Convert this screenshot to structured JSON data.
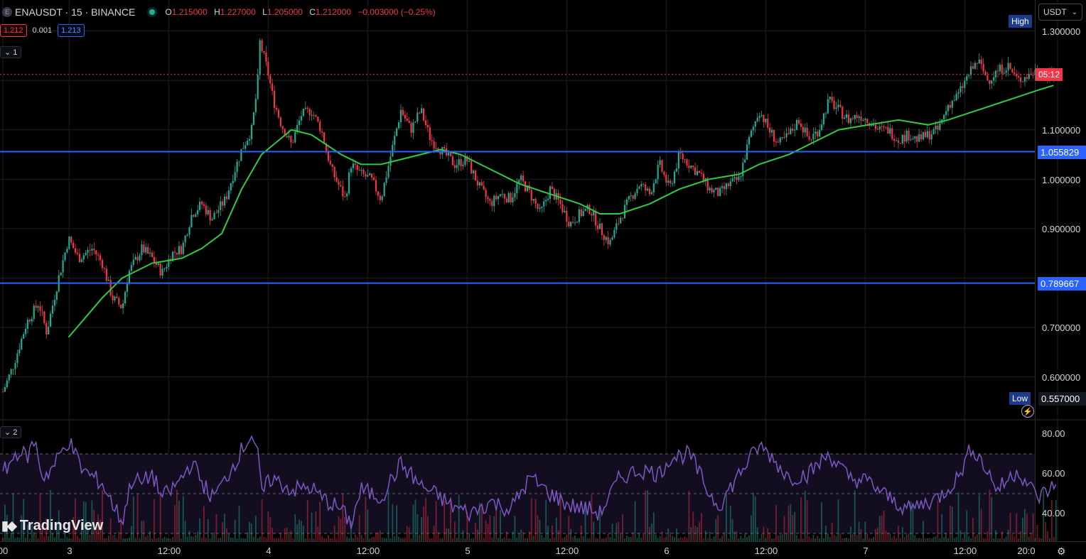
{
  "header": {
    "exchange_badge": "E",
    "symbol": "ENAUSDT · 15 · BINANCE",
    "ohlc": [
      {
        "k": "O",
        "v": "1.215000"
      },
      {
        "k": "H",
        "v": "1.227000"
      },
      {
        "k": "L",
        "v": "1.205000"
      },
      {
        "k": "C",
        "v": "1.212000"
      }
    ],
    "change": "−0.003000 (−0.25%)"
  },
  "trade": {
    "sell": "1.212",
    "spread": "0.001",
    "buy": "1.213"
  },
  "panes": {
    "main_tag": "1",
    "rsi_tag": "2"
  },
  "price_axis": {
    "currency": "USDT",
    "ticks": [
      {
        "label": "1.300000",
        "value": 1.3
      },
      {
        "label": "1.100000",
        "value": 1.1
      },
      {
        "label": "1.000000",
        "value": 1.0
      },
      {
        "label": "0.900000",
        "value": 0.9
      },
      {
        "label": "0.700000",
        "value": 0.7
      },
      {
        "label": "0.600000",
        "value": 0.6
      }
    ],
    "high_label": "High",
    "low_label": "Low",
    "low_value": "0.557000",
    "countdown": "05:12",
    "level_1": "1.055829",
    "level_2": "0.789667"
  },
  "rsi_axis": {
    "ticks": [
      {
        "label": "80.00",
        "value": 80
      },
      {
        "label": "60.00",
        "value": 60
      },
      {
        "label": "40.00",
        "value": 40
      }
    ]
  },
  "time_axis": [
    {
      "label": "00",
      "day": 0.0
    },
    {
      "label": "3",
      "day": 0.333
    },
    {
      "label": "12:00",
      "day": 0.833
    },
    {
      "label": "4",
      "day": 1.333
    },
    {
      "label": "12:00",
      "day": 1.833
    },
    {
      "label": "5",
      "day": 2.333
    },
    {
      "label": "12:00",
      "day": 2.833
    },
    {
      "label": "6",
      "day": 3.333
    },
    {
      "label": "12:00",
      "day": 3.833
    },
    {
      "label": "7",
      "day": 4.333
    },
    {
      "label": "12:00",
      "day": 4.833
    },
    {
      "label": "20:0",
      "day": 5.3
    }
  ],
  "branding": {
    "logo": "TradingView"
  },
  "colors": {
    "up": "#22ab94",
    "down": "#f23645",
    "ma": "#2ecc40",
    "level": "#2962ff",
    "rsi": "#7e57c2",
    "grid": "#1c1f26",
    "countdown_bg": "#f23645",
    "label_bg": "#1e3a8a"
  },
  "chart_data": {
    "type": "candlestick",
    "interval": "15m",
    "price_range": [
      0.56,
      1.33
    ],
    "current_price": 1.212,
    "horizontal_levels": [
      1.055829,
      0.789667
    ],
    "price_path": [
      [
        0.0,
        0.57
      ],
      [
        0.05,
        0.62
      ],
      [
        0.12,
        0.71
      ],
      [
        0.18,
        0.75
      ],
      [
        0.22,
        0.69
      ],
      [
        0.28,
        0.8
      ],
      [
        0.33,
        0.88
      ],
      [
        0.38,
        0.84
      ],
      [
        0.45,
        0.86
      ],
      [
        0.5,
        0.83
      ],
      [
        0.55,
        0.76
      ],
      [
        0.6,
        0.74
      ],
      [
        0.63,
        0.81
      ],
      [
        0.7,
        0.86
      ],
      [
        0.75,
        0.84
      ],
      [
        0.8,
        0.81
      ],
      [
        0.85,
        0.85
      ],
      [
        0.9,
        0.86
      ],
      [
        0.95,
        0.93
      ],
      [
        1.0,
        0.95
      ],
      [
        1.05,
        0.92
      ],
      [
        1.12,
        0.96
      ],
      [
        1.15,
        1.0
      ],
      [
        1.2,
        1.06
      ],
      [
        1.25,
        1.1
      ],
      [
        1.28,
        1.19
      ],
      [
        1.29,
        1.28
      ],
      [
        1.33,
        1.22
      ],
      [
        1.36,
        1.16
      ],
      [
        1.4,
        1.11
      ],
      [
        1.45,
        1.07
      ],
      [
        1.5,
        1.13
      ],
      [
        1.55,
        1.14
      ],
      [
        1.6,
        1.1
      ],
      [
        1.65,
        1.02
      ],
      [
        1.72,
        0.96
      ],
      [
        1.75,
        1.03
      ],
      [
        1.8,
        1.01
      ],
      [
        1.85,
        1.0
      ],
      [
        1.9,
        0.96
      ],
      [
        1.95,
        1.05
      ],
      [
        2.0,
        1.14
      ],
      [
        2.05,
        1.1
      ],
      [
        2.1,
        1.14
      ],
      [
        2.15,
        1.08
      ],
      [
        2.2,
        1.06
      ],
      [
        2.27,
        1.03
      ],
      [
        2.33,
        1.04
      ],
      [
        2.4,
        0.98
      ],
      [
        2.45,
        0.95
      ],
      [
        2.5,
        0.97
      ],
      [
        2.55,
        0.96
      ],
      [
        2.6,
        1.0
      ],
      [
        2.65,
        0.97
      ],
      [
        2.7,
        0.93
      ],
      [
        2.75,
        0.98
      ],
      [
        2.8,
        0.95
      ],
      [
        2.85,
        0.91
      ],
      [
        2.9,
        0.93
      ],
      [
        2.95,
        0.94
      ],
      [
        3.0,
        0.9
      ],
      [
        3.05,
        0.87
      ],
      [
        3.1,
        0.92
      ],
      [
        3.15,
        0.96
      ],
      [
        3.2,
        0.99
      ],
      [
        3.25,
        0.97
      ],
      [
        3.3,
        1.03
      ],
      [
        3.35,
        0.98
      ],
      [
        3.4,
        1.05
      ],
      [
        3.45,
        1.03
      ],
      [
        3.5,
        1.01
      ],
      [
        3.55,
        0.98
      ],
      [
        3.6,
        0.97
      ],
      [
        3.65,
        0.99
      ],
      [
        3.7,
        1.0
      ],
      [
        3.75,
        1.08
      ],
      [
        3.8,
        1.14
      ],
      [
        3.85,
        1.1
      ],
      [
        3.9,
        1.07
      ],
      [
        3.95,
        1.09
      ],
      [
        4.0,
        1.12
      ],
      [
        4.05,
        1.08
      ],
      [
        4.1,
        1.1
      ],
      [
        4.15,
        1.16
      ],
      [
        4.2,
        1.14
      ],
      [
        4.25,
        1.12
      ],
      [
        4.3,
        1.13
      ],
      [
        4.35,
        1.12
      ],
      [
        4.4,
        1.1
      ],
      [
        4.45,
        1.1
      ],
      [
        4.5,
        1.08
      ],
      [
        4.55,
        1.09
      ],
      [
        4.6,
        1.08
      ],
      [
        4.65,
        1.09
      ],
      [
        4.7,
        1.1
      ],
      [
        4.75,
        1.15
      ],
      [
        4.8,
        1.17
      ],
      [
        4.85,
        1.21
      ],
      [
        4.9,
        1.24
      ],
      [
        4.95,
        1.2
      ],
      [
        5.0,
        1.22
      ],
      [
        5.05,
        1.23
      ],
      [
        5.1,
        1.2
      ],
      [
        5.15,
        1.21
      ],
      [
        5.2,
        1.22
      ],
      [
        5.25,
        1.21
      ],
      [
        5.3,
        1.212
      ]
    ],
    "ma_path": [
      [
        0.33,
        0.68
      ],
      [
        0.5,
        0.76
      ],
      [
        0.6,
        0.8
      ],
      [
        0.75,
        0.83
      ],
      [
        0.9,
        0.84
      ],
      [
        1.0,
        0.86
      ],
      [
        1.1,
        0.89
      ],
      [
        1.2,
        0.98
      ],
      [
        1.3,
        1.05
      ],
      [
        1.45,
        1.1
      ],
      [
        1.55,
        1.09
      ],
      [
        1.7,
        1.05
      ],
      [
        1.8,
        1.03
      ],
      [
        1.9,
        1.03
      ],
      [
        2.0,
        1.04
      ],
      [
        2.1,
        1.05
      ],
      [
        2.2,
        1.06
      ],
      [
        2.3,
        1.05
      ],
      [
        2.45,
        1.02
      ],
      [
        2.6,
        0.99
      ],
      [
        2.75,
        0.97
      ],
      [
        2.9,
        0.95
      ],
      [
        3.0,
        0.93
      ],
      [
        3.1,
        0.93
      ],
      [
        3.25,
        0.95
      ],
      [
        3.4,
        0.98
      ],
      [
        3.55,
        1.0
      ],
      [
        3.7,
        1.01
      ],
      [
        3.8,
        1.03
      ],
      [
        3.95,
        1.05
      ],
      [
        4.05,
        1.07
      ],
      [
        4.2,
        1.1
      ],
      [
        4.35,
        1.11
      ],
      [
        4.5,
        1.12
      ],
      [
        4.65,
        1.11
      ],
      [
        4.75,
        1.12
      ],
      [
        4.9,
        1.14
      ],
      [
        5.05,
        1.16
      ],
      [
        5.2,
        1.18
      ],
      [
        5.28,
        1.19
      ]
    ],
    "rsi": {
      "range": [
        30,
        85
      ],
      "levels": [
        70,
        50,
        30
      ],
      "path": [
        [
          0.0,
          60
        ],
        [
          0.08,
          72
        ],
        [
          0.12,
          68
        ],
        [
          0.16,
          77
        ],
        [
          0.2,
          58
        ],
        [
          0.25,
          63
        ],
        [
          0.33,
          77
        ],
        [
          0.4,
          62
        ],
        [
          0.5,
          55
        ],
        [
          0.55,
          45
        ],
        [
          0.6,
          36
        ],
        [
          0.65,
          58
        ],
        [
          0.7,
          55
        ],
        [
          0.75,
          60
        ],
        [
          0.8,
          48
        ],
        [
          0.85,
          52
        ],
        [
          0.9,
          58
        ],
        [
          0.95,
          66
        ],
        [
          1.0,
          56
        ],
        [
          1.05,
          48
        ],
        [
          1.1,
          54
        ],
        [
          1.2,
          72
        ],
        [
          1.25,
          80
        ],
        [
          1.28,
          70
        ],
        [
          1.3,
          50
        ],
        [
          1.35,
          58
        ],
        [
          1.45,
          52
        ],
        [
          1.55,
          53
        ],
        [
          1.6,
          48
        ],
        [
          1.7,
          42
        ],
        [
          1.75,
          35
        ],
        [
          1.8,
          52
        ],
        [
          1.9,
          48
        ],
        [
          2.0,
          65
        ],
        [
          2.1,
          54
        ],
        [
          2.2,
          48
        ],
        [
          2.25,
          44
        ],
        [
          2.35,
          40
        ],
        [
          2.45,
          46
        ],
        [
          2.55,
          42
        ],
        [
          2.65,
          58
        ],
        [
          2.75,
          50
        ],
        [
          2.85,
          44
        ],
        [
          2.95,
          42
        ],
        [
          3.0,
          40
        ],
        [
          3.1,
          58
        ],
        [
          3.2,
          62
        ],
        [
          3.3,
          60
        ],
        [
          3.35,
          68
        ],
        [
          3.45,
          70
        ],
        [
          3.55,
          50
        ],
        [
          3.6,
          44
        ],
        [
          3.7,
          60
        ],
        [
          3.8,
          74
        ],
        [
          3.85,
          70
        ],
        [
          3.95,
          58
        ],
        [
          4.05,
          60
        ],
        [
          4.15,
          70
        ],
        [
          4.25,
          58
        ],
        [
          4.35,
          56
        ],
        [
          4.45,
          48
        ],
        [
          4.55,
          42
        ],
        [
          4.6,
          44
        ],
        [
          4.7,
          48
        ],
        [
          4.8,
          58
        ],
        [
          4.87,
          74
        ],
        [
          4.92,
          66
        ],
        [
          5.0,
          52
        ],
        [
          5.1,
          62
        ],
        [
          5.2,
          48
        ],
        [
          5.3,
          55
        ]
      ]
    }
  }
}
